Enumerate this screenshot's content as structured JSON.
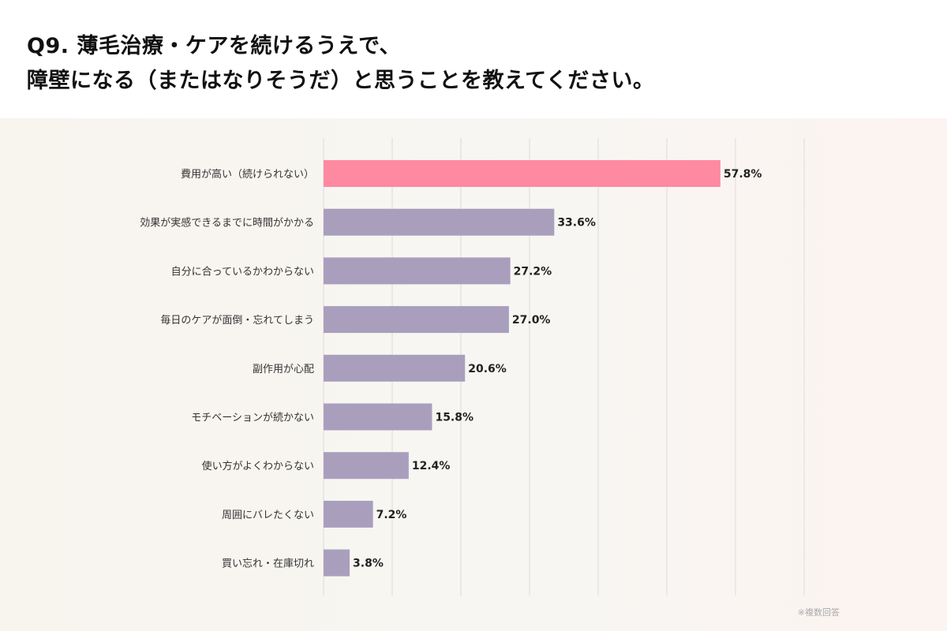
{
  "header": {
    "title_line1": "Q9. 薄毛治療・ケアを続けるうえで、",
    "title_line2": "障壁になる（またはなりそうだ）と思うことを教えてください。"
  },
  "note": "※複数回答",
  "colors": {
    "highlight": "#fd8aa0",
    "bar": "#a99fbd",
    "grid": "#dedbd8",
    "label": "#333333",
    "value": "#222222"
  },
  "chart_data": {
    "type": "bar",
    "orientation": "horizontal",
    "categories": [
      "費用が高い（続けられない）",
      "効果が実感できるまでに時間がかかる",
      "自分に合っているかわからない",
      "毎日のケアが面倒・忘れてしまう",
      "副作用が心配",
      "モチベーションが続かない",
      "使い方がよくわからない",
      "周囲にバレたくない",
      "買い忘れ・在庫切れ"
    ],
    "values": [
      57.8,
      33.6,
      27.2,
      27.0,
      20.6,
      15.8,
      12.4,
      7.2,
      3.8
    ],
    "value_labels": [
      "57.8%",
      "33.6%",
      "27.2%",
      "27.0%",
      "20.6%",
      "15.8%",
      "12.4%",
      "7.2%",
      "3.8%"
    ],
    "highlight_index": 0,
    "xlim": [
      0,
      70
    ],
    "grid": true,
    "legend": "none"
  }
}
